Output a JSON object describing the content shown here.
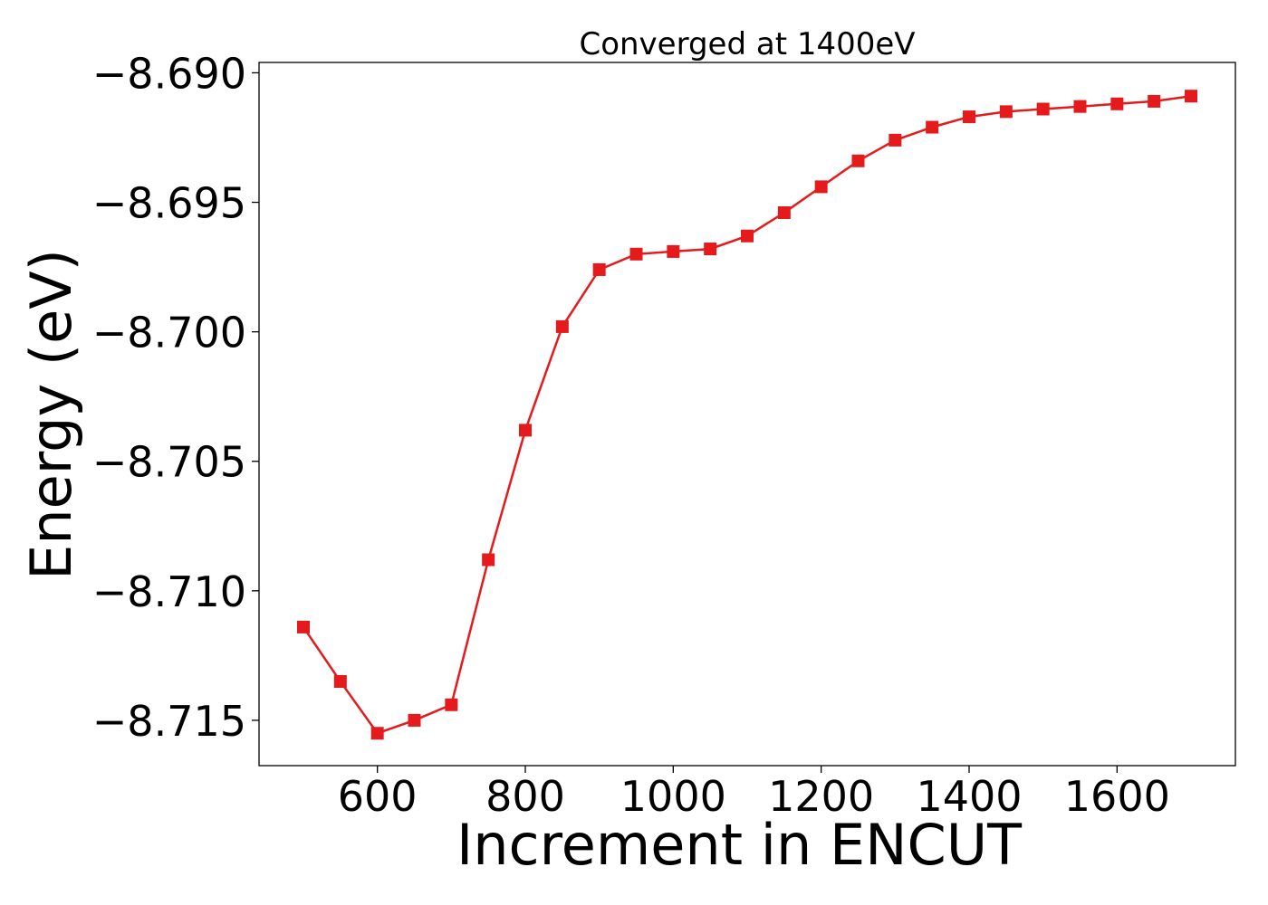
{
  "chart_data": {
    "type": "line",
    "title": "Converged at 1400eV",
    "xlabel": "Increment in ENCUT",
    "ylabel": "Energy (eV)",
    "xlim": [
      440,
      1760
    ],
    "ylim": [
      -8.71675,
      -8.6896
    ],
    "xticks": [
      600,
      800,
      1000,
      1200,
      1400,
      1600
    ],
    "xtick_labels": [
      "600",
      "800",
      "1000",
      "1200",
      "1400",
      "1600"
    ],
    "yticks": [
      -8.69,
      -8.695,
      -8.7,
      -8.705,
      -8.71,
      -8.715
    ],
    "ytick_labels": [
      "−8.690",
      "−8.695",
      "−8.700",
      "−8.705",
      "−8.710",
      "−8.715"
    ],
    "grid": false,
    "series": [
      {
        "color": "#e41a1c",
        "marker": "square",
        "x": [
          500,
          550,
          600,
          650,
          700,
          750,
          800,
          850,
          900,
          950,
          1000,
          1050,
          1100,
          1150,
          1200,
          1250,
          1300,
          1350,
          1400,
          1450,
          1500,
          1550,
          1600,
          1650,
          1700
        ],
        "y": [
          -8.7114,
          -8.7135,
          -8.7155,
          -8.715,
          -8.7144,
          -8.7088,
          -8.7038,
          -8.6998,
          -8.6976,
          -8.697,
          -8.6969,
          -8.6968,
          -8.6963,
          -8.6954,
          -8.6944,
          -8.6934,
          -8.6926,
          -8.6921,
          -8.6917,
          -8.6915,
          -8.6914,
          -8.6913,
          -8.6912,
          -8.6911,
          -8.6909
        ]
      }
    ]
  }
}
